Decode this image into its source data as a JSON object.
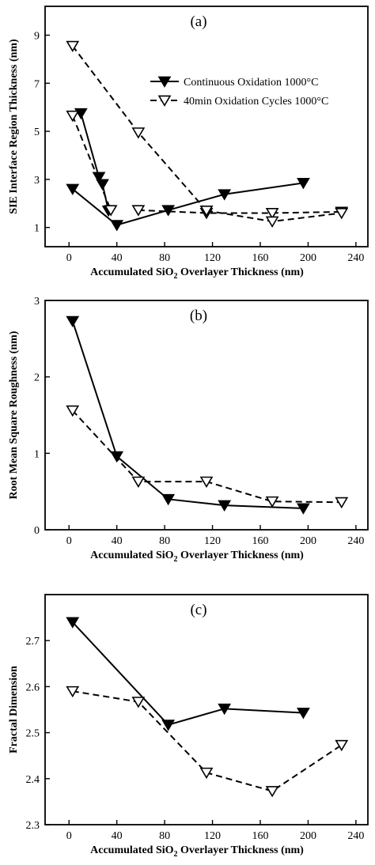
{
  "chart_data": [
    {
      "type": "line",
      "panel_label": "(a)",
      "xlabel_parts": [
        "Accumulated SiO",
        "2",
        " Overlayer Thickness (nm)"
      ],
      "ylabel": "SIE Interface Region Thickness (nm)",
      "xlim": [
        -20,
        250
      ],
      "ylim": [
        0.2,
        10.2
      ],
      "xticks": [
        0,
        40,
        80,
        120,
        160,
        200,
        240
      ],
      "yticks": [
        1,
        3,
        5,
        7,
        9
      ],
      "legend_position": "top-right",
      "series": [
        {
          "name": "Continuous Oxidation 1000°C",
          "marker": "filled-triangle-down",
          "line": "solid",
          "segments": [
            [
              [
                10,
                5.75
              ],
              [
                25,
                3.1
              ],
              [
                28,
                2.8
              ],
              [
                33,
                1.7
              ]
            ],
            [
              [
                3,
                2.6
              ],
              [
                40,
                1.1
              ],
              [
                83,
                1.72
              ],
              [
                130,
                2.38
              ],
              [
                196,
                2.85
              ]
            ]
          ]
        },
        {
          "name": "40min Oxidation Cycles 1000°C",
          "marker": "open-triangle-down",
          "line": "dashed",
          "segments": [
            [
              [
                3,
                5.65
              ],
              [
                35,
                1.72
              ]
            ],
            [
              [
                3,
                8.55
              ],
              [
                58,
                4.95
              ],
              [
                115,
                1.7
              ]
            ],
            [
              [
                58,
                1.72
              ],
              [
                115,
                1.6
              ],
              [
                170,
                1.6
              ],
              [
                228,
                1.65
              ]
            ],
            [
              [
                115,
                1.7
              ],
              [
                170,
                1.25
              ],
              [
                228,
                1.6
              ]
            ]
          ]
        }
      ]
    },
    {
      "type": "line",
      "panel_label": "(b)",
      "xlabel_parts": [
        "Accumulated SiO",
        "2",
        " Overlayer Thickness (nm)"
      ],
      "ylabel": "Root Mean Square Roughness (nm)",
      "xlim": [
        -20,
        250
      ],
      "ylim": [
        0,
        3
      ],
      "xticks": [
        0,
        40,
        80,
        120,
        160,
        200,
        240
      ],
      "yticks": [
        0,
        1,
        2,
        3
      ],
      "series": [
        {
          "name": "Continuous Oxidation 1000°C",
          "marker": "filled-triangle-down",
          "line": "solid",
          "segments": [
            [
              [
                3,
                2.73
              ],
              [
                40,
                0.96
              ],
              [
                83,
                0.4
              ],
              [
                130,
                0.32
              ],
              [
                196,
                0.28
              ]
            ]
          ]
        },
        {
          "name": "40min Oxidation Cycles 1000°C",
          "marker": "open-triangle-down",
          "line": "dashed",
          "segments": [
            [
              [
                3,
                1.56
              ],
              [
                58,
                0.63
              ],
              [
                115,
                0.63
              ],
              [
                170,
                0.37
              ],
              [
                228,
                0.36
              ]
            ]
          ]
        }
      ]
    },
    {
      "type": "line",
      "panel_label": "(c)",
      "xlabel_parts": [
        "Accumulated SiO",
        "2",
        " Overlayer Thickness (nm)"
      ],
      "ylabel": "Fractal Dimension",
      "xlim": [
        -20,
        250
      ],
      "ylim": [
        2.3,
        2.8
      ],
      "xticks": [
        0,
        40,
        80,
        120,
        160,
        200,
        240
      ],
      "yticks": [
        2.3,
        2.4,
        2.5,
        2.6,
        2.7
      ],
      "series": [
        {
          "name": "Continuous Oxidation 1000°C",
          "marker": "filled-triangle-down",
          "line": "solid",
          "segments": [
            [
              [
                3,
                2.74
              ],
              [
                83,
                2.517
              ],
              [
                130,
                2.552
              ],
              [
                196,
                2.543
              ]
            ]
          ]
        },
        {
          "name": "40min Oxidation Cycles 1000°C",
          "marker": "open-triangle-down",
          "line": "dashed",
          "segments": [
            [
              [
                3,
                2.59
              ],
              [
                58,
                2.567
              ],
              [
                115,
                2.413
              ],
              [
                170,
                2.373
              ],
              [
                228,
                2.473
              ]
            ]
          ]
        }
      ]
    }
  ]
}
